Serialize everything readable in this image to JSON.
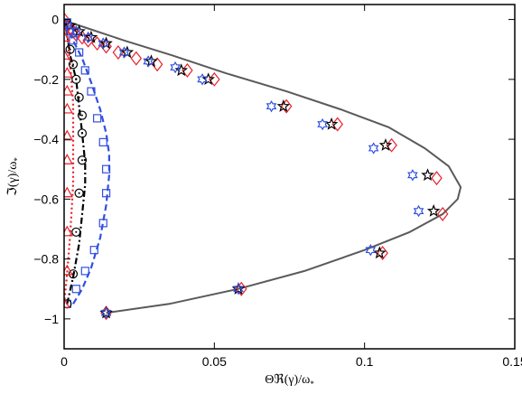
{
  "chart_data": {
    "type": "scatter",
    "title": "",
    "xlabel": "ΘℜΔ(γ)/ω*",
    "ylabel": "ℑ(γ)/ω*",
    "xlabel_display": "Θℜ(γ)/ω",
    "xlabel_sub": "*",
    "ylabel_display": "ℑ(γ)/ω",
    "ylabel_sub": "*",
    "xlim": [
      0,
      0.15
    ],
    "ylim": [
      -1.1,
      0.05
    ],
    "x_ticks": [
      0,
      0.05,
      0.1,
      0.15
    ],
    "x_tick_labels": [
      "0",
      "0.05",
      "0.1",
      "0.15"
    ],
    "y_ticks": [
      -1,
      -0.8,
      -0.6,
      -0.4,
      -0.2,
      0
    ],
    "y_tick_labels": [
      "−1",
      "−0.8",
      "−0.6",
      "−0.4",
      "−0.2",
      "0"
    ],
    "grid": false,
    "legend": "none",
    "colors": {
      "gray": "#5a5a5a",
      "red": "#e8202a",
      "blue": "#3050e0",
      "black": "#000000"
    },
    "lines": [
      {
        "style": "solid",
        "color": "gray",
        "x": [
          0.014,
          0.035,
          0.058,
          0.08,
          0.1,
          0.115,
          0.126,
          0.131,
          0.132,
          0.128,
          0.12,
          0.108,
          0.092,
          0.074,
          0.054,
          0.036,
          0.02,
          0.008,
          0.002,
          0
        ],
        "y": [
          -0.98,
          -0.95,
          -0.9,
          -0.84,
          -0.77,
          -0.71,
          -0.65,
          -0.6,
          -0.56,
          -0.49,
          -0.43,
          -0.36,
          -0.3,
          -0.24,
          -0.18,
          -0.12,
          -0.07,
          -0.03,
          -0.01,
          0
        ]
      },
      {
        "style": "dashed",
        "color": "blue",
        "x": [
          0.003,
          0.006,
          0.009,
          0.012,
          0.014,
          0.015,
          0.015,
          0.014,
          0.012,
          0.009,
          0.006,
          0.003,
          0.001,
          0
        ],
        "y": [
          -0.95,
          -0.9,
          -0.83,
          -0.73,
          -0.62,
          -0.52,
          -0.45,
          -0.38,
          -0.3,
          -0.21,
          -0.13,
          -0.07,
          -0.03,
          0
        ]
      },
      {
        "style": "dashdot",
        "color": "black",
        "x": [
          0.001,
          0.003,
          0.005,
          0.006,
          0.007,
          0.007,
          0.006,
          0.005,
          0.004,
          0.002,
          0.001,
          0
        ],
        "y": [
          -0.95,
          -0.86,
          -0.75,
          -0.65,
          -0.55,
          -0.48,
          -0.38,
          -0.29,
          -0.2,
          -0.12,
          -0.05,
          0
        ]
      },
      {
        "style": "dotted",
        "color": "red",
        "x": [
          0.0,
          0.001,
          0.002,
          0.003,
          0.003,
          0.003,
          0.002,
          0.001,
          0
        ],
        "y": [
          -0.95,
          -0.85,
          -0.72,
          -0.55,
          -0.42,
          -0.28,
          -0.15,
          -0.05,
          0
        ]
      }
    ],
    "series": [
      {
        "marker": "diamond",
        "color": "red",
        "x": [
          0.014,
          0.059,
          0.106,
          0.126,
          0.124,
          0.109,
          0.091,
          0.074,
          0.05,
          0.041,
          0.031,
          0.024,
          0.018,
          0.014,
          0.011,
          0.008,
          0.006,
          0.004,
          0.003,
          0.002,
          0.001,
          0
        ],
        "y": [
          -0.98,
          -0.9,
          -0.78,
          -0.65,
          -0.53,
          -0.42,
          -0.35,
          -0.29,
          -0.2,
          -0.17,
          -0.15,
          -0.13,
          -0.11,
          -0.09,
          -0.08,
          -0.07,
          -0.06,
          -0.05,
          -0.04,
          -0.03,
          -0.02,
          0
        ]
      },
      {
        "marker": "star",
        "color": "black",
        "x": [
          0.014,
          0.058,
          0.105,
          0.123,
          0.121,
          0.107,
          0.089,
          0.073,
          0.048,
          0.039,
          0.029,
          0.021,
          0.014,
          0.009,
          0.005,
          0.002
        ],
        "y": [
          -0.98,
          -0.9,
          -0.78,
          -0.64,
          -0.52,
          -0.42,
          -0.35,
          -0.29,
          -0.2,
          -0.17,
          -0.14,
          -0.11,
          -0.08,
          -0.06,
          -0.04,
          -0.02
        ]
      },
      {
        "marker": "hexagram",
        "color": "blue",
        "x": [
          0.014,
          0.058,
          0.102,
          0.118,
          0.116,
          0.103,
          0.086,
          0.069,
          0.046,
          0.037,
          0.028,
          0.02,
          0.013,
          0.008,
          0.004,
          0.001
        ],
        "y": [
          -0.98,
          -0.9,
          -0.77,
          -0.64,
          -0.52,
          -0.43,
          -0.35,
          -0.29,
          -0.2,
          -0.16,
          -0.14,
          -0.11,
          -0.08,
          -0.06,
          -0.04,
          -0.02
        ]
      },
      {
        "marker": "square",
        "color": "blue",
        "x": [
          0.001,
          0.004,
          0.007,
          0.01,
          0.013,
          0.014,
          0.014,
          0.013,
          0.011,
          0.009,
          0.007,
          0.005,
          0.003,
          0.002,
          0.001
        ],
        "y": [
          -0.95,
          -0.9,
          -0.84,
          -0.77,
          -0.68,
          -0.58,
          -0.5,
          -0.41,
          -0.33,
          -0.24,
          -0.17,
          -0.11,
          -0.07,
          -0.04,
          -0.01
        ]
      },
      {
        "marker": "circle-dot",
        "color": "black",
        "x": [
          0.001,
          0.003,
          0.004,
          0.005,
          0.006,
          0.006,
          0.006,
          0.005,
          0.004,
          0.003,
          0.002
        ],
        "y": [
          -0.95,
          -0.85,
          -0.71,
          -0.58,
          -0.47,
          -0.38,
          -0.32,
          -0.26,
          -0.2,
          -0.15,
          -0.1
        ]
      },
      {
        "marker": "triangle",
        "color": "red",
        "x": [
          0.0,
          0.001,
          0.001,
          0.001,
          0.001,
          0.001,
          0.001,
          0.001,
          0.001,
          0.0,
          0.0
        ],
        "y": [
          -0.95,
          -0.84,
          -0.71,
          -0.58,
          -0.47,
          -0.39,
          -0.3,
          -0.24,
          -0.18,
          -0.12,
          -0.06
        ]
      }
    ]
  }
}
